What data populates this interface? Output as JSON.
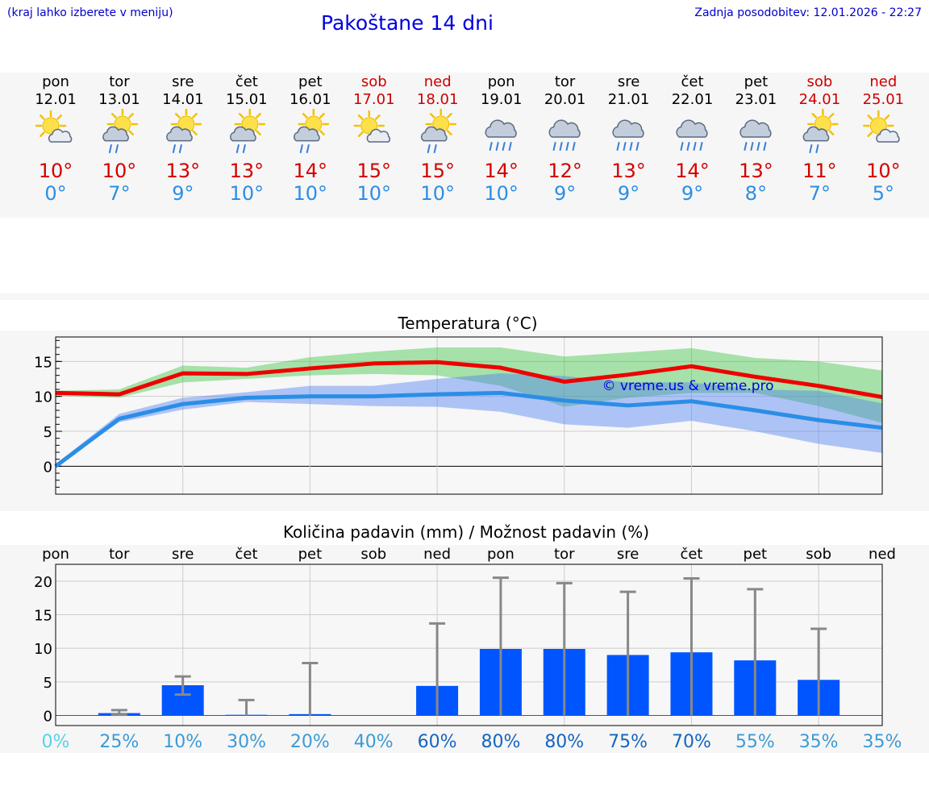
{
  "header": {
    "hint": "(kraj lahko izberete v meniju)",
    "title": "Pakoštane 14 dni",
    "updated": "Zadnja posodobitev: 12.01.2026 - 22:27"
  },
  "colors": {
    "max": "#d40000",
    "min": "#2b8ee6",
    "weekend": "#cc0000",
    "weekday": "#000000",
    "bar": "#0055ff",
    "whisker": "#888888"
  },
  "days": [
    {
      "name": "pon",
      "date": "12.01",
      "weekend": false,
      "icon": "sun-cloud-icon",
      "tmax": "10°",
      "tmin": "0°"
    },
    {
      "name": "tor",
      "date": "13.01",
      "weekend": false,
      "icon": "sun-rain-icon",
      "tmax": "10°",
      "tmin": "7°"
    },
    {
      "name": "sre",
      "date": "14.01",
      "weekend": false,
      "icon": "sun-rain-icon",
      "tmax": "13°",
      "tmin": "9°"
    },
    {
      "name": "čet",
      "date": "15.01",
      "weekend": false,
      "icon": "sun-rain-icon",
      "tmax": "13°",
      "tmin": "10°"
    },
    {
      "name": "pet",
      "date": "16.01",
      "weekend": false,
      "icon": "sun-rain-icon",
      "tmax": "14°",
      "tmin": "10°"
    },
    {
      "name": "sob",
      "date": "17.01",
      "weekend": true,
      "icon": "sun-cloud-icon",
      "tmax": "15°",
      "tmin": "10°"
    },
    {
      "name": "ned",
      "date": "18.01",
      "weekend": true,
      "icon": "sun-rain-icon",
      "tmax": "15°",
      "tmin": "10°"
    },
    {
      "name": "pon",
      "date": "19.01",
      "weekend": false,
      "icon": "rain-cloud-icon",
      "tmax": "14°",
      "tmin": "10°"
    },
    {
      "name": "tor",
      "date": "20.01",
      "weekend": false,
      "icon": "rain-cloud-icon",
      "tmax": "12°",
      "tmin": "9°"
    },
    {
      "name": "sre",
      "date": "21.01",
      "weekend": false,
      "icon": "rain-cloud-icon",
      "tmax": "13°",
      "tmin": "9°"
    },
    {
      "name": "čet",
      "date": "22.01",
      "weekend": false,
      "icon": "rain-cloud-icon",
      "tmax": "14°",
      "tmin": "9°"
    },
    {
      "name": "pet",
      "date": "23.01",
      "weekend": false,
      "icon": "rain-cloud-icon",
      "tmax": "13°",
      "tmin": "8°"
    },
    {
      "name": "sob",
      "date": "24.01",
      "weekend": true,
      "icon": "sun-rain-icon",
      "tmax": "11°",
      "tmin": "7°"
    },
    {
      "name": "ned",
      "date": "25.01",
      "weekend": true,
      "icon": "sun-cloud-icon",
      "tmax": "10°",
      "tmin": "5°"
    }
  ],
  "chart_data": [
    {
      "type": "line",
      "title": "Temperatura (°C)",
      "watermark": "© vreme.us & vreme.pro",
      "x": [
        0,
        1,
        2,
        3,
        4,
        5,
        6,
        7,
        8,
        9,
        10,
        11,
        12,
        13
      ],
      "ylim": [
        -4,
        18.5
      ],
      "yticks": [
        0,
        5,
        10,
        15
      ],
      "grid": true,
      "series": [
        {
          "name": "max",
          "values": [
            10.5,
            10.3,
            13.3,
            13.2,
            14.0,
            14.7,
            14.9,
            14.1,
            12.1,
            13.1,
            14.3,
            12.8,
            11.5,
            9.9
          ]
        },
        {
          "name": "min",
          "values": [
            0,
            6.8,
            8.9,
            9.8,
            10.0,
            10.0,
            10.3,
            10.5,
            9.4,
            8.7,
            9.3,
            8.0,
            6.6,
            5.5
          ]
        }
      ],
      "bands": [
        {
          "name": "max-range",
          "low": [
            10.1,
            9.8,
            12.0,
            12.5,
            13.0,
            13.2,
            13.0,
            11.5,
            8.5,
            9.8,
            10.5,
            10.5,
            8.6,
            6.2
          ],
          "high": [
            10.8,
            11.0,
            14.4,
            14.1,
            15.6,
            16.4,
            17.0,
            17.0,
            15.7,
            16.3,
            16.9,
            15.5,
            15.0,
            13.7
          ]
        },
        {
          "name": "min-range",
          "low": [
            0,
            6.3,
            8.1,
            9.2,
            8.9,
            8.6,
            8.5,
            7.8,
            6.0,
            5.5,
            6.5,
            5.0,
            3.2,
            1.9
          ],
          "high": [
            0.3,
            7.5,
            9.8,
            10.6,
            11.5,
            11.5,
            12.5,
            13.3,
            12.9,
            12.0,
            12.0,
            11.0,
            10.8,
            9.0
          ]
        }
      ]
    },
    {
      "type": "bar",
      "title": "Količina padavin (mm) / Možnost padavin (%)",
      "categories": [
        "pon",
        "tor",
        "sre",
        "čet",
        "pet",
        "sob",
        "ned",
        "pon",
        "tor",
        "sre",
        "čet",
        "pet",
        "sob",
        "ned"
      ],
      "ylim": [
        -1.5,
        22.5
      ],
      "yticks": [
        0,
        5,
        10,
        15,
        20
      ],
      "values": [
        0,
        0.35,
        4.5,
        0.1,
        0.2,
        0,
        4.4,
        9.9,
        9.9,
        9.0,
        9.4,
        8.2,
        5.3,
        0
      ],
      "error_low": [
        0,
        0.1,
        3.1,
        0,
        0,
        0,
        0,
        0,
        0,
        0,
        0,
        0,
        0,
        0
      ],
      "error_high": [
        0,
        0.8,
        5.8,
        2.3,
        7.8,
        0,
        13.7,
        20.5,
        19.7,
        18.4,
        20.4,
        18.8,
        12.9,
        0
      ],
      "chance": [
        "0%",
        "25%",
        "10%",
        "30%",
        "20%",
        "40%",
        "60%",
        "80%",
        "80%",
        "75%",
        "70%",
        "55%",
        "35%",
        "35%"
      ],
      "chance_values": [
        0,
        25,
        10,
        30,
        20,
        40,
        60,
        80,
        80,
        75,
        70,
        55,
        35,
        35
      ]
    }
  ]
}
